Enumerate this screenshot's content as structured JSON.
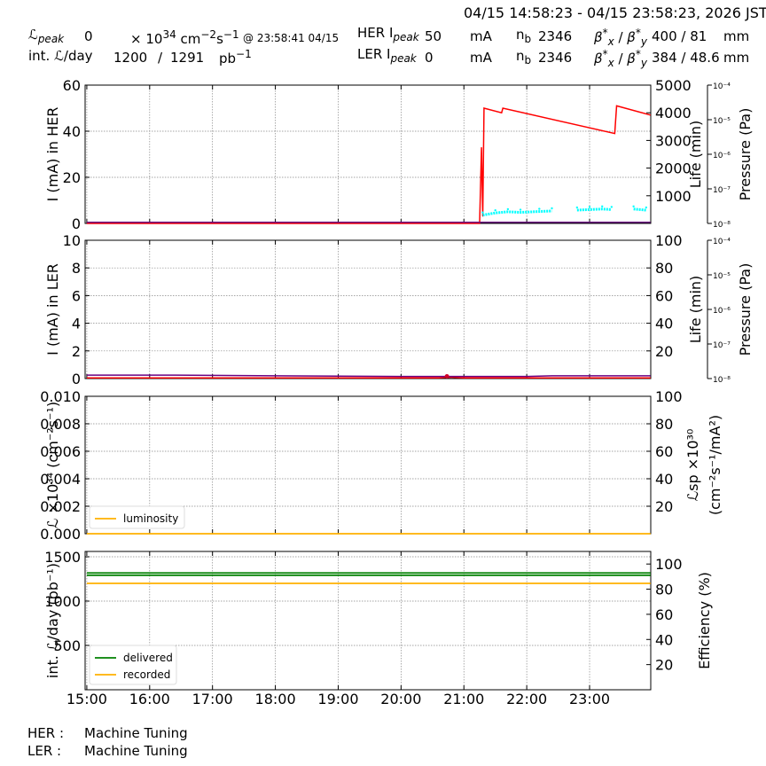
{
  "header": {
    "timerange": "04/15 14:58:23 - 04/15 23:58:23, 2026 JST",
    "lpeak_label": "ℒ",
    "lpeak_sub": "peak",
    "lpeak_value": "0",
    "lpeak_unit": "× 10",
    "lpeak_unit_exp": "34",
    "lpeak_unit2": " cm",
    "lpeak_unit2_exp": "−2",
    "lpeak_unit3": "s",
    "lpeak_unit3_exp": "−1",
    "lpeak_time": "@ 23:58:41 04/15",
    "intl_label": "int. ℒ/day",
    "intl_value": "1200",
    "intl_sep": "/",
    "intl_value2": "1291",
    "intl_unit": "pb",
    "intl_unit_exp": "−1",
    "her_ipeak_label": "HER I",
    "her_ipeak_sub": "peak",
    "her_ipeak_value": "50",
    "her_ipeak_unit": "mA",
    "her_nb_label": "n",
    "her_nb_sub": "b",
    "her_nb_value": "2346",
    "her_beta_label": "β",
    "her_beta_values": "400  / 81",
    "her_beta_unit": "mm",
    "ler_ipeak_label": "LER I",
    "ler_ipeak_sub": "peak",
    "ler_ipeak_value": "0",
    "ler_ipeak_unit": "mA",
    "ler_nb_label": "n",
    "ler_nb_sub": "b",
    "ler_nb_value": "2346",
    "ler_beta_label": "β",
    "ler_beta_values": "384  / 48.6",
    "ler_beta_unit": "mm"
  },
  "footer": {
    "her_label": "HER :",
    "her_status": "Machine Tuning",
    "ler_label": "LER :",
    "ler_status": "Machine Tuning"
  },
  "colors": {
    "current": "#ff0000",
    "life": "#00ffff",
    "pressure": "#6a0080",
    "luminosity": "#ffb000",
    "delivered": "#008000",
    "recorded": "#ffb000",
    "grid": "#888888"
  },
  "chart_data": [
    {
      "id": "her",
      "type": "line",
      "ylabel": "I (mA) in HER",
      "ylabel_right": "Life (min)",
      "ylabel_right2": "Pressure (Pa)",
      "ylim": [
        0,
        60
      ],
      "yticks": [
        "0",
        "20",
        "40",
        "60"
      ],
      "ylim_right": [
        0,
        5000
      ],
      "yticks_right": [
        "1000",
        "2000",
        "3000",
        "4000",
        "5000"
      ],
      "pressure_ticks": [
        "10⁻⁸",
        "10⁻⁷",
        "10⁻⁶",
        "10⁻⁵",
        "10⁻⁴"
      ],
      "series": [
        {
          "role": "current",
          "x": [
            15.0,
            21.25,
            21.28,
            21.3,
            21.32,
            21.6,
            21.62,
            23.4,
            23.43,
            23.97
          ],
          "y": [
            0,
            0,
            33,
            3,
            50,
            48,
            50,
            39,
            51,
            47
          ]
        },
        {
          "role": "life",
          "x": [
            21.3,
            21.5,
            21.7,
            21.9,
            22.2,
            22.4,
            22.6,
            22.8,
            23.0,
            23.2,
            23.35,
            23.5,
            23.7,
            23.9
          ],
          "y": [
            300,
            380,
            420,
            400,
            430,
            450,
            null,
            480,
            500,
            520,
            500,
            null,
            520,
            480
          ]
        },
        {
          "role": "pressure",
          "x": [
            15.0,
            23.97
          ],
          "y": [
            0.5,
            0.5
          ]
        }
      ]
    },
    {
      "id": "ler",
      "type": "line",
      "ylabel": "I (mA) in LER",
      "ylabel_right": "Life (min)",
      "ylabel_right2": "Pressure (Pa)",
      "ylim": [
        0,
        10
      ],
      "yticks": [
        "0",
        "2",
        "4",
        "6",
        "8",
        "10"
      ],
      "ylim_right": [
        0,
        100
      ],
      "yticks_right": [
        "20",
        "40",
        "60",
        "80",
        "100"
      ],
      "pressure_ticks": [
        "10⁻⁸",
        "10⁻⁷",
        "10⁻⁶",
        "10⁻⁵",
        "10⁻⁴"
      ],
      "series": [
        {
          "role": "current",
          "x": [
            15.0,
            17.0,
            19.0,
            20.6,
            20.75,
            21.0,
            22.0,
            22.5,
            22.8,
            23.97
          ],
          "y": [
            0.05,
            0.05,
            0.05,
            0.05,
            0.1,
            0.05,
            0.05,
            0.05,
            0.05,
            0.05
          ]
        },
        {
          "role": "pressure",
          "x": [
            15.0,
            16.4,
            18.0,
            20.0,
            21.0,
            22.0,
            22.4,
            23.97
          ],
          "y": [
            0.25,
            0.25,
            0.2,
            0.15,
            0.15,
            0.15,
            0.2,
            0.2
          ]
        }
      ]
    },
    {
      "id": "lumi",
      "type": "line",
      "ylabel": "ℒ ×10³⁴ (cm⁻²s⁻¹)",
      "ylabel_right": "ℒsp ×10³⁰",
      "ylabel_right2": "(cm⁻²s⁻¹/mA²)",
      "ylim": [
        0,
        0.01
      ],
      "yticks": [
        "0.000",
        "0.002",
        "0.004",
        "0.006",
        "0.008",
        "0.010"
      ],
      "ylim_right": [
        0,
        100
      ],
      "yticks_right": [
        "20",
        "40",
        "60",
        "80",
        "100"
      ],
      "legend": [
        "luminosity"
      ],
      "legend_position": "lower-left",
      "series": [
        {
          "name": "luminosity",
          "x": [
            15.0,
            23.97
          ],
          "y": [
            0,
            0
          ]
        }
      ]
    },
    {
      "id": "intlumi",
      "type": "line",
      "ylabel": "int. ℒ/day (pb⁻¹)",
      "ylabel_right": "Efficiency (%)",
      "ylim": [
        0,
        1560
      ],
      "yticks": [
        "500",
        "1000",
        "1500"
      ],
      "ylim_right": [
        0,
        110
      ],
      "yticks_right": [
        "20",
        "40",
        "60",
        "80",
        "100"
      ],
      "legend": [
        "delivered",
        "recorded"
      ],
      "legend_position": "lower-left",
      "xticks": [
        "15:00",
        "16:00",
        "17:00",
        "18:00",
        "19:00",
        "20:00",
        "21:00",
        "22:00",
        "23:00"
      ],
      "xlim": [
        14.973,
        23.973
      ],
      "series": [
        {
          "name": "delivered",
          "x": [
            15.0,
            23.97
          ],
          "y": [
            1291,
            1291
          ]
        },
        {
          "name": "recorded",
          "x": [
            15.0,
            23.97
          ],
          "y": [
            1200,
            1200
          ]
        },
        {
          "role": "efficiency",
          "x": [
            15.0,
            23.97
          ],
          "y": [
            92.9,
            92.9
          ]
        }
      ]
    }
  ]
}
